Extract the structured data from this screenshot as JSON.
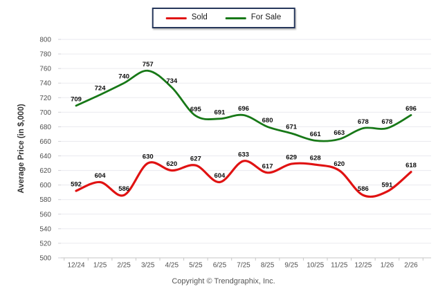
{
  "legend": {
    "border_color": "#25365a"
  },
  "footer": {
    "copyright": "Copyright © Trendgraphix, Inc."
  },
  "chart_data": {
    "type": "line",
    "title": "",
    "xlabel": "",
    "ylabel": "Average Price (in $,000)",
    "categories": [
      "12/24",
      "1/25",
      "2/25",
      "3/25",
      "4/25",
      "5/25",
      "6/25",
      "7/25",
      "8/25",
      "9/25",
      "10/25",
      "11/25",
      "12/25",
      "1/26",
      "2/26"
    ],
    "series": [
      {
        "name": "Sold",
        "color": "#e01212",
        "values": [
          592,
          604,
          586,
          630,
          620,
          627,
          604,
          633,
          617,
          629,
          628,
          620,
          586,
          591,
          618
        ]
      },
      {
        "name": "For Sale",
        "color": "#177817",
        "values": [
          709,
          724,
          740,
          757,
          734,
          695,
          691,
          696,
          680,
          671,
          661,
          663,
          678,
          678,
          696
        ]
      }
    ],
    "ylim": [
      500,
      800
    ],
    "ytick_step": 20,
    "grid": "horizontal",
    "legend_position": "top-center",
    "data_labels": true,
    "axis_color": "#c6c6c6",
    "grid_color": "#eaeaef"
  }
}
